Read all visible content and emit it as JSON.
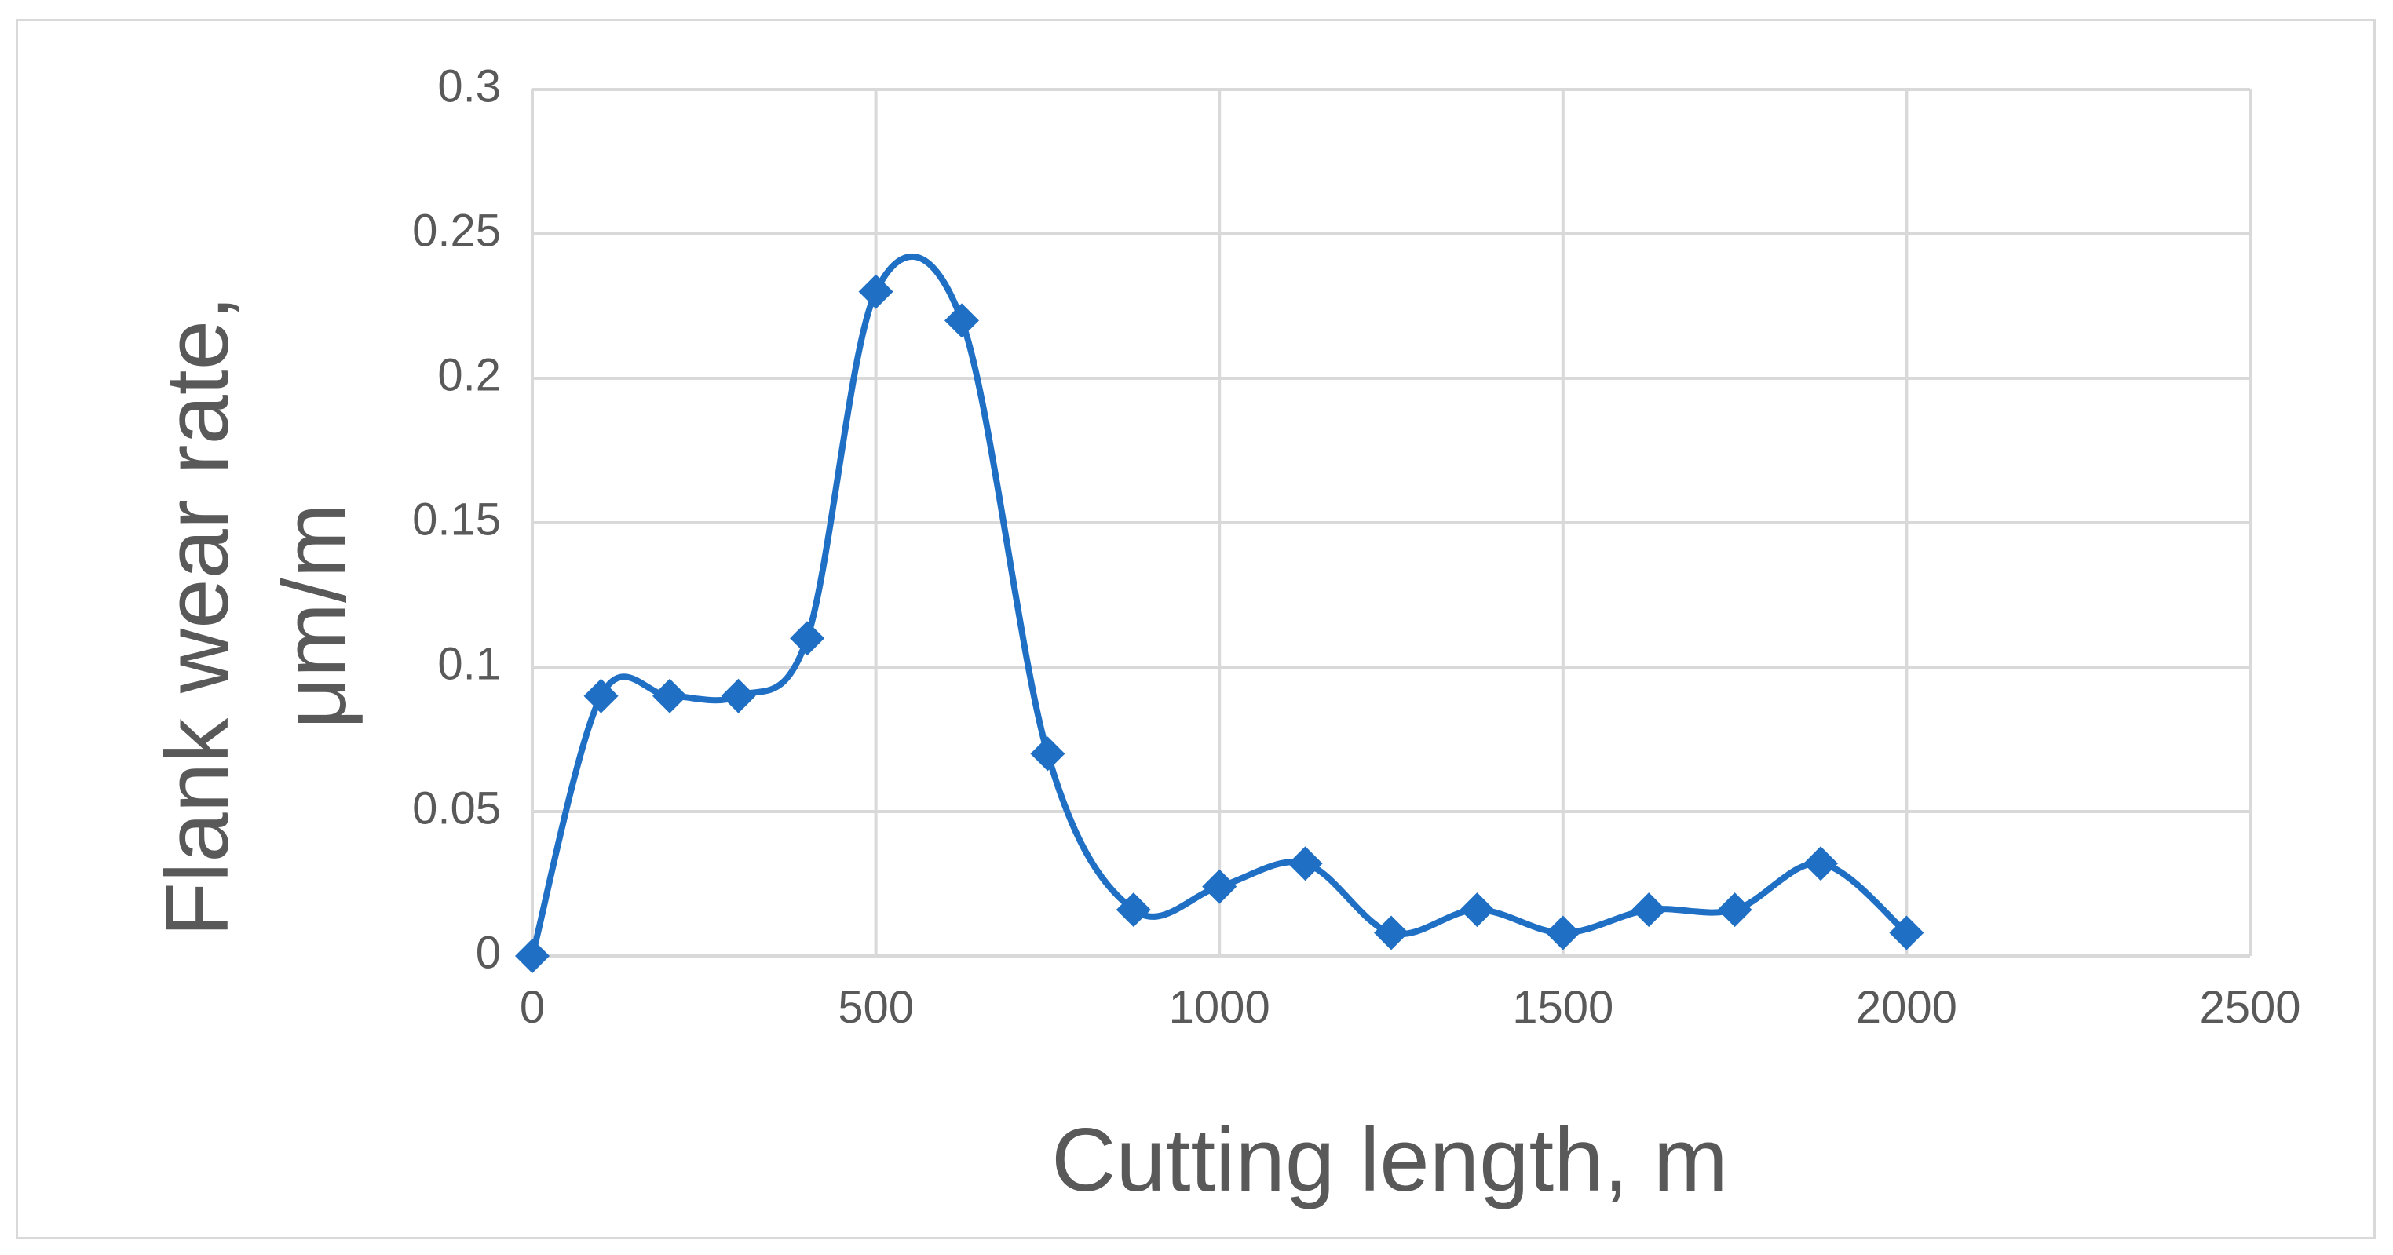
{
  "chart_data": {
    "type": "line",
    "title": "",
    "xlabel": "Cutting length, m",
    "ylabel_line1": "Flank wear rate,",
    "ylabel_line2": "μm/m",
    "xlim": [
      0,
      2500
    ],
    "ylim": [
      0,
      0.3
    ],
    "x_ticks": [
      0,
      500,
      1000,
      1500,
      2000,
      2500
    ],
    "x_tick_labels": [
      "0",
      "500",
      "1000",
      "1500",
      "2000",
      "2500"
    ],
    "y_ticks": [
      0,
      0.05,
      0.1,
      0.15,
      0.2,
      0.25,
      0.3
    ],
    "y_tick_labels": [
      "0",
      "0.05",
      "0.1",
      "0.15",
      "0.2",
      "0.25",
      "0.3"
    ],
    "grid": true,
    "legend": "none",
    "smoothed": true,
    "marker": "diamond",
    "series": [
      {
        "color": "#1f6fc5",
        "x": [
          0,
          100,
          200,
          300,
          400,
          500,
          625,
          750,
          875,
          1000,
          1125,
          1250,
          1375,
          1500,
          1625,
          1750,
          1875,
          2000
        ],
        "y": [
          0,
          0.09,
          0.09,
          0.09,
          0.11,
          0.23,
          0.22,
          0.07,
          0.016,
          0.024,
          0.032,
          0.008,
          0.016,
          0.008,
          0.016,
          0.016,
          0.032,
          0.008
        ]
      }
    ]
  }
}
